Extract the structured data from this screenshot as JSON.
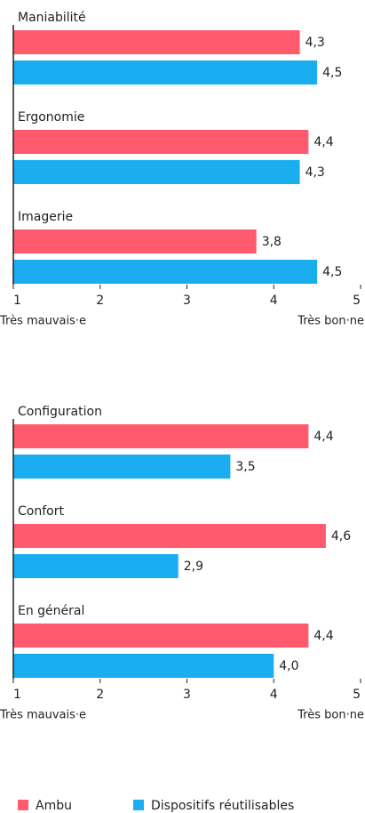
{
  "chart_data": [
    {
      "type": "bar",
      "orientation": "horizontal",
      "categories": [
        "Maniabilité",
        "Ergonomie",
        "Imagerie"
      ],
      "series": [
        {
          "name": "Ambu",
          "color": "#ff5a6e",
          "values": [
            4.3,
            4.4,
            3.8
          ],
          "value_labels": [
            "4,3",
            "4,4",
            "3,8"
          ]
        },
        {
          "name": "Dispositifs réutilisables",
          "color": "#1aaef0",
          "values": [
            4.5,
            4.3,
            4.5
          ],
          "value_labels": [
            "4,5",
            "4,3",
            "4,5"
          ]
        }
      ],
      "xlim": [
        1,
        5
      ],
      "xticks": [
        1,
        2,
        3,
        4,
        5
      ],
      "annotations": [
        "Très mauvais·e",
        "Très bon·ne"
      ]
    },
    {
      "type": "bar",
      "orientation": "horizontal",
      "categories": [
        "Configuration",
        "Confort",
        "En général"
      ],
      "series": [
        {
          "name": "Ambu",
          "color": "#ff5a6e",
          "values": [
            4.4,
            4.6,
            4.4
          ],
          "value_labels": [
            "4,4",
            "4,6",
            "4,4"
          ]
        },
        {
          "name": "Dispositifs réutilisables",
          "color": "#1aaef0",
          "values": [
            3.5,
            2.9,
            4.0
          ],
          "value_labels": [
            "3,5",
            "2,9",
            "4,0"
          ]
        }
      ],
      "xlim": [
        1,
        5
      ],
      "xticks": [
        1,
        2,
        3,
        4,
        5
      ],
      "annotations": [
        "Très mauvais·e",
        "Très bon·ne"
      ]
    }
  ]
}
